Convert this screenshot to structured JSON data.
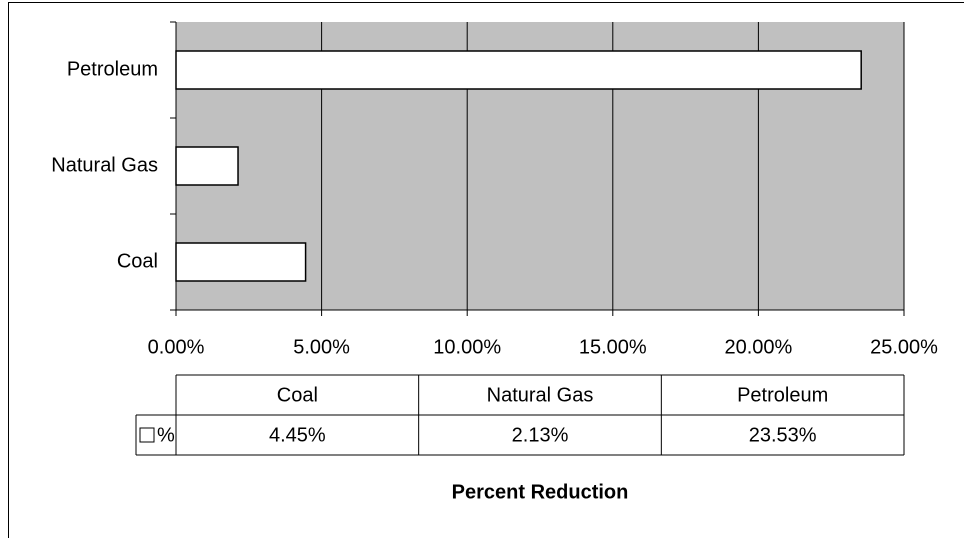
{
  "chart_data": {
    "type": "bar",
    "orientation": "horizontal",
    "categories": [
      "Coal",
      "Natural Gas",
      "Petroleum"
    ],
    "series": [
      {
        "name": "%",
        "color": "#ffffff",
        "values": [
          4.45,
          2.13,
          23.53
        ],
        "value_labels": [
          "4.45%",
          "2.13%",
          "23.53%"
        ]
      }
    ],
    "xlim": [
      0,
      25
    ],
    "xticks": [
      {
        "value": 0,
        "label": "0.00%"
      },
      {
        "value": 5,
        "label": "5.00%"
      },
      {
        "value": 10,
        "label": "10.00%"
      },
      {
        "value": 15,
        "label": "15.00%"
      },
      {
        "value": 20,
        "label": "20.00%"
      },
      {
        "value": 25,
        "label": "25.00%"
      }
    ],
    "xlabel": "Percent Reduction",
    "grid": true,
    "plot_background": "#c0c0c0",
    "data_table": true
  }
}
